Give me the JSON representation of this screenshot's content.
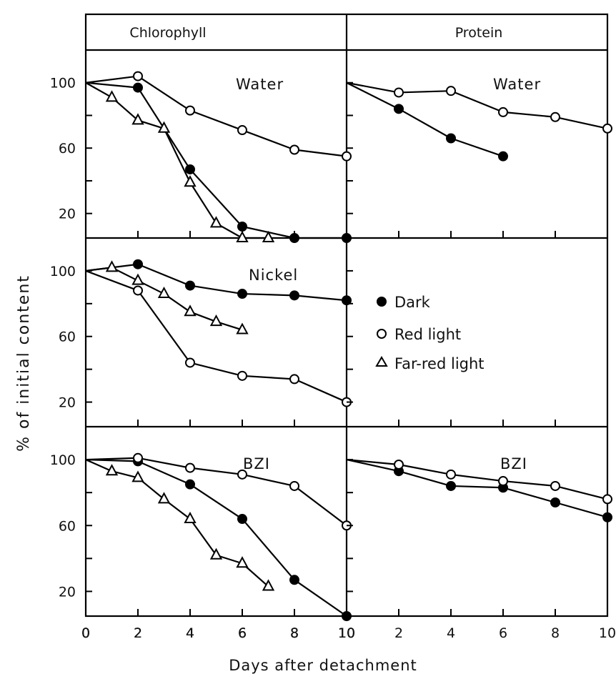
{
  "figure": {
    "ylabel": "% of initial content",
    "xlabel": "Days after detachment",
    "columns": [
      "Chlorophyll",
      "Protein"
    ]
  },
  "legend": [
    {
      "symbol": "filled-circle",
      "label": "Dark"
    },
    {
      "symbol": "open-circle",
      "label": "Red light"
    },
    {
      "symbol": "open-triangle",
      "label": "Far-red light"
    }
  ],
  "chart_data": [
    {
      "type": "line",
      "column": "Chlorophyll",
      "label": "Water",
      "xlim": [
        0,
        10
      ],
      "ylim": [
        5,
        120
      ],
      "x_ticks": [
        "0",
        "2",
        "4",
        "6",
        "8",
        "10"
      ],
      "y_ticks": [
        "20",
        "60",
        "100"
      ],
      "series": [
        {
          "name": "Dark",
          "marker": "filled-circle",
          "x": [
            0,
            2,
            4,
            6,
            8,
            10
          ],
          "y": [
            100,
            97,
            47,
            12,
            3,
            2
          ]
        },
        {
          "name": "Red light",
          "marker": "open-circle",
          "x": [
            0,
            2,
            4,
            6,
            8,
            10
          ],
          "y": [
            100,
            104,
            83,
            71,
            59,
            55
          ]
        },
        {
          "name": "Far-red light",
          "marker": "open-triangle",
          "x": [
            0,
            1,
            2,
            3,
            4,
            5,
            6,
            7
          ],
          "y": [
            100,
            91,
            77,
            72,
            39,
            14,
            4,
            0
          ]
        }
      ]
    },
    {
      "type": "line",
      "column": "Protein",
      "label": "Water",
      "xlim": [
        0,
        10
      ],
      "ylim": [
        5,
        120
      ],
      "series": [
        {
          "name": "Dark",
          "marker": "filled-circle",
          "x": [
            0,
            2,
            4,
            6
          ],
          "y": [
            100,
            84,
            66,
            55
          ]
        },
        {
          "name": "Red light",
          "marker": "open-circle",
          "x": [
            0,
            2,
            4,
            6,
            8,
            10
          ],
          "y": [
            100,
            94,
            95,
            82,
            79,
            72
          ]
        }
      ]
    },
    {
      "type": "line",
      "column": "Chlorophyll",
      "label": "Nickel",
      "xlim": [
        0,
        10
      ],
      "ylim": [
        5,
        120
      ],
      "x_ticks": [
        "0",
        "2",
        "4",
        "6",
        "8",
        "10"
      ],
      "y_ticks": [
        "20",
        "60",
        "100"
      ],
      "series": [
        {
          "name": "Dark",
          "marker": "filled-circle",
          "x": [
            0,
            2,
            4,
            6,
            8,
            10
          ],
          "y": [
            100,
            104,
            91,
            86,
            85,
            82
          ]
        },
        {
          "name": "Red light",
          "marker": "open-circle",
          "x": [
            0,
            2,
            4,
            6,
            8,
            10
          ],
          "y": [
            100,
            88,
            44,
            36,
            34,
            20
          ]
        },
        {
          "name": "Far-red light",
          "marker": "open-triangle",
          "x": [
            0,
            1,
            2,
            3,
            4,
            5,
            6
          ],
          "y": [
            100,
            102,
            94,
            86,
            75,
            69,
            64
          ]
        }
      ]
    },
    {
      "type": "line",
      "column": "Protein",
      "label": "",
      "xlim": [
        0,
        10
      ],
      "ylim": [
        5,
        120
      ],
      "series": []
    },
    {
      "type": "line",
      "column": "Chlorophyll",
      "label": "BZI",
      "xlim": [
        0,
        10
      ],
      "ylim": [
        5,
        120
      ],
      "x_ticks": [
        "0",
        "2",
        "4",
        "6",
        "8",
        "10"
      ],
      "y_ticks": [
        "20",
        "60",
        "100"
      ],
      "series": [
        {
          "name": "Dark",
          "marker": "filled-circle",
          "x": [
            0,
            2,
            4,
            6,
            8,
            10
          ],
          "y": [
            100,
            99,
            85,
            64,
            27,
            4
          ]
        },
        {
          "name": "Red light",
          "marker": "open-circle",
          "x": [
            0,
            2,
            4,
            6,
            8,
            10
          ],
          "y": [
            100,
            101,
            95,
            91,
            84,
            60
          ]
        },
        {
          "name": "Far-red light",
          "marker": "open-triangle",
          "x": [
            0,
            1,
            2,
            3,
            4,
            5,
            6,
            7
          ],
          "y": [
            100,
            93,
            89,
            76,
            64,
            42,
            37,
            23
          ]
        }
      ]
    },
    {
      "type": "line",
      "column": "Protein",
      "label": "BZI",
      "xlim": [
        0,
        10
      ],
      "ylim": [
        5,
        120
      ],
      "x_ticks": [
        "2",
        "4",
        "6",
        "8",
        "10"
      ],
      "series": [
        {
          "name": "Dark",
          "marker": "filled-circle",
          "x": [
            0,
            2,
            4,
            6,
            8,
            10
          ],
          "y": [
            100,
            93,
            84,
            83,
            74,
            65
          ]
        },
        {
          "name": "Red light",
          "marker": "open-circle",
          "x": [
            0,
            2,
            4,
            6,
            8,
            10
          ],
          "y": [
            100,
            97,
            91,
            87,
            84,
            76
          ]
        }
      ]
    }
  ]
}
